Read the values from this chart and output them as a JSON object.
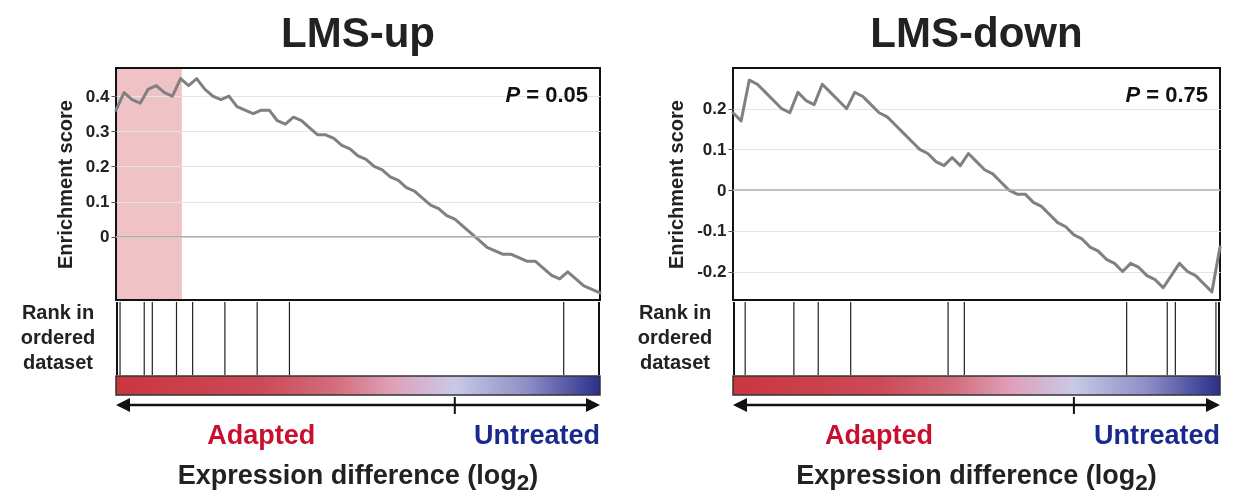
{
  "chart_data": [
    {
      "type": "line",
      "title": "LMS-up",
      "xlabel": "Expression difference (log$_{2}$)",
      "ylabel": "Enrichment score",
      "categories": [
        null,
        null,
        null,
        null,
        null,
        null,
        null,
        null,
        null,
        null,
        null,
        null,
        null,
        null,
        null,
        null,
        null,
        null,
        null,
        null,
        null,
        null,
        null,
        null,
        null,
        null,
        null,
        null,
        null,
        null,
        null,
        null,
        null,
        null,
        null,
        null,
        null,
        null,
        null,
        null,
        null,
        null,
        null,
        null,
        null,
        null,
        null,
        null,
        null,
        null,
        null,
        null,
        null,
        null,
        null,
        null,
        null,
        null,
        null,
        null,
        null
      ],
      "series": [
        {
          "color": "#808080",
          "values": [
            0.36,
            0.41,
            0.39,
            0.38,
            0.42,
            0.43,
            0.41,
            0.4,
            0.45,
            0.43,
            0.45,
            0.42,
            0.4,
            0.39,
            0.4,
            0.37,
            0.36,
            0.35,
            0.36,
            0.36,
            0.33,
            0.32,
            0.34,
            0.33,
            0.31,
            0.29,
            0.29,
            0.28,
            0.26,
            0.25,
            0.23,
            0.22,
            0.2,
            0.19,
            0.17,
            0.16,
            0.14,
            0.13,
            0.11,
            0.09,
            0.08,
            0.06,
            0.05,
            0.03,
            0.01,
            -0.01,
            -0.03,
            -0.04,
            -0.05,
            -0.05,
            -0.06,
            -0.07,
            -0.07,
            -0.09,
            -0.11,
            -0.12,
            -0.1,
            -0.12,
            -0.14,
            -0.15,
            -0.16
          ]
        }
      ],
      "ylim": [
        -0.18,
        0.48
      ],
      "yticks": [
        0,
        0.1,
        0.2,
        0.3,
        0.4
      ],
      "grid": "y",
      "tick_labels": "y",
      "ref_lines": [
        {
          "axis": "y",
          "value": 0,
          "color": "#b0b0b0"
        }
      ],
      "annotations": [
        "P = 0.05",
        "Rank in ordered dataset",
        "Adapted",
        "Untreated"
      ]
    },
    {
      "type": "line",
      "title": "LMS-down",
      "xlabel": "Expression difference (log$_{2}$)",
      "ylabel": "Enrichment score",
      "categories": [
        null,
        null,
        null,
        null,
        null,
        null,
        null,
        null,
        null,
        null,
        null,
        null,
        null,
        null,
        null,
        null,
        null,
        null,
        null,
        null,
        null,
        null,
        null,
        null,
        null,
        null,
        null,
        null,
        null,
        null,
        null,
        null,
        null,
        null,
        null,
        null,
        null,
        null,
        null,
        null,
        null,
        null,
        null,
        null,
        null,
        null,
        null,
        null,
        null,
        null,
        null,
        null,
        null,
        null,
        null,
        null,
        null,
        null,
        null,
        null,
        null
      ],
      "series": [
        {
          "color": "#808080",
          "values": [
            0.19,
            0.17,
            0.27,
            0.26,
            0.24,
            0.22,
            0.2,
            0.19,
            0.24,
            0.22,
            0.21,
            0.26,
            0.24,
            0.22,
            0.2,
            0.24,
            0.23,
            0.21,
            0.19,
            0.18,
            0.16,
            0.14,
            0.12,
            0.1,
            0.09,
            0.07,
            0.06,
            0.08,
            0.06,
            0.09,
            0.07,
            0.05,
            0.04,
            0.02,
            0.0,
            -0.01,
            -0.01,
            -0.03,
            -0.04,
            -0.06,
            -0.08,
            -0.09,
            -0.11,
            -0.12,
            -0.14,
            -0.15,
            -0.17,
            -0.18,
            -0.2,
            -0.18,
            -0.19,
            -0.21,
            -0.22,
            -0.24,
            -0.21,
            -0.18,
            -0.2,
            -0.21,
            -0.23,
            -0.25,
            -0.14
          ]
        }
      ],
      "ylim": [
        -0.27,
        0.3
      ],
      "yticks": [
        -0.2,
        -0.1,
        0,
        0.1,
        0.2
      ],
      "grid": "y",
      "tick_labels": "y",
      "ref_lines": [
        {
          "axis": "y",
          "value": 0,
          "color": "#b0b0b0"
        }
      ],
      "annotations": [
        "P = 0.75",
        "Rank in ordered dataset",
        "Adapted",
        "Untreated"
      ]
    }
  ]
}
